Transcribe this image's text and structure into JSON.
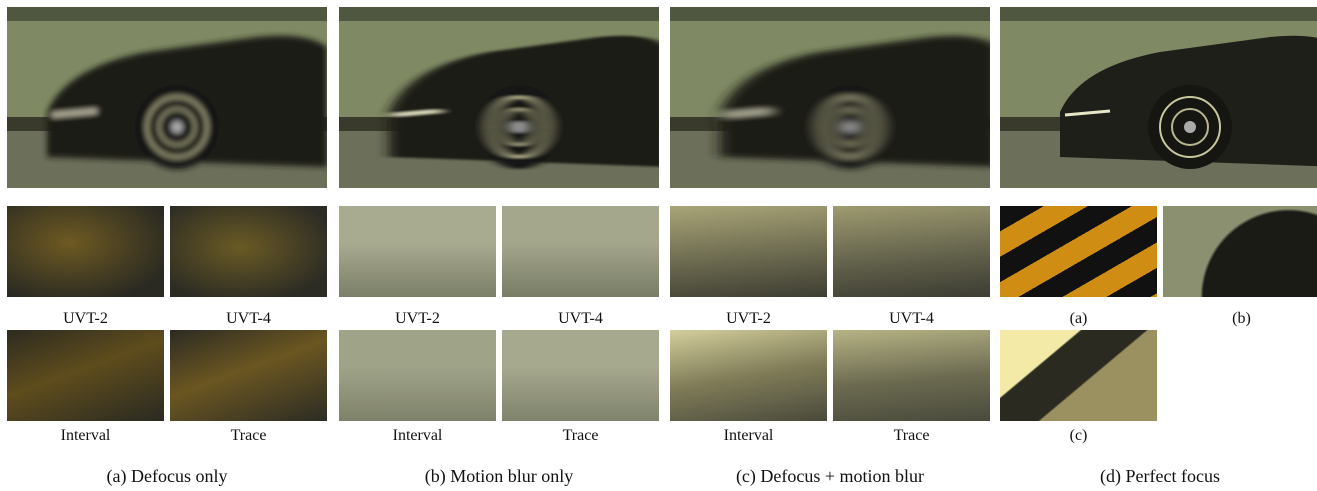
{
  "panels": [
    {
      "caption": "(a) Defocus only",
      "crops": [
        "UVT-2",
        "UVT-4",
        "Interval",
        "Trace"
      ]
    },
    {
      "caption": "(b) Motion blur only",
      "crops": [
        "UVT-2",
        "UVT-4",
        "Interval",
        "Trace"
      ]
    },
    {
      "caption": "(c) Defocus + motion blur",
      "crops": [
        "UVT-2",
        "UVT-4",
        "Interval",
        "Trace"
      ]
    },
    {
      "caption": "(d) Perfect focus",
      "crops": [
        "(a)",
        "(b)",
        "(c)"
      ]
    }
  ]
}
